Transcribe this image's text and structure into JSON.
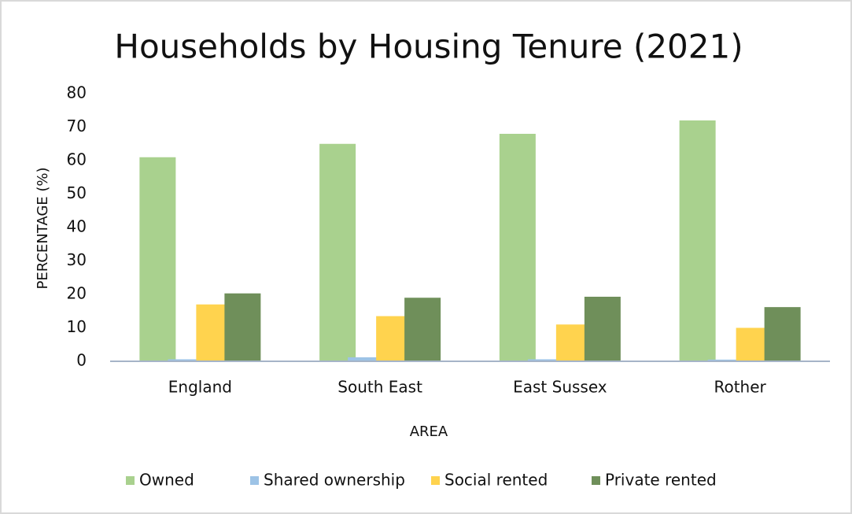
{
  "chart_data": {
    "type": "bar",
    "title": "Households by Housing Tenure (2021)",
    "x_label": "AREA",
    "y_label": "PERCENTAGE (%)",
    "categories": [
      "England",
      "South East",
      "East Sussex",
      "Rother"
    ],
    "series": [
      {
        "name": "Owned",
        "color": "#a9d18e",
        "values": [
          61,
          65,
          68,
          72
        ]
      },
      {
        "name": "Shared ownership",
        "color": "#9dc3e6",
        "values": [
          0.6,
          1.2,
          0.6,
          0.5
        ]
      },
      {
        "name": "Social rented",
        "color": "#ffd34e",
        "values": [
          17,
          13.5,
          11,
          10
        ]
      },
      {
        "name": "Private rented",
        "color": "#6f8f5a",
        "values": [
          20.3,
          19,
          19.3,
          16.2
        ]
      }
    ],
    "ylim": [
      0,
      80
    ],
    "yticks": [
      0,
      10,
      20,
      30,
      40,
      50,
      60,
      70,
      80
    ],
    "grid": false,
    "legend": "bottom"
  }
}
